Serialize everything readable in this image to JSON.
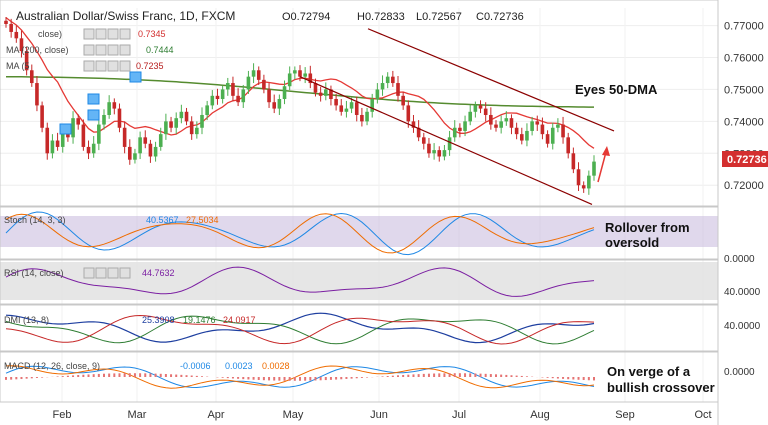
{
  "header": {
    "symbol": "Australian Dollar/Swiss Franc, 1D, FXCM",
    "ohlc": [
      "O0.72794",
      "H0.72833",
      "L0.72567",
      "C0.72736"
    ]
  },
  "indicators_main": [
    {
      "label": "close)",
      "value": "0.7345",
      "color": "#d32f2f"
    },
    {
      "label": "MA (200, close)",
      "value": "0.7444",
      "color": "#2e7d32"
    },
    {
      "label": "MA (5",
      "value": "0.7235",
      "color": "#b71c1c"
    }
  ],
  "price_axis": {
    "ticks": [
      "0.77000",
      "0.76000",
      "0.75000",
      "0.74000",
      "0.73000",
      "0.72000"
    ],
    "current": "0.72736",
    "range": [
      0.7135,
      0.7755
    ]
  },
  "annotations": {
    "main": "Eyes 50-DMA",
    "stoch": [
      "Rollover from",
      "oversold"
    ],
    "macd": [
      "On verge of a",
      "bullish crossover"
    ]
  },
  "panes": {
    "stoch": {
      "label": "Stoch (14, 3, 3)",
      "v1": "40.5367",
      "v2": "27.5034",
      "axis": [
        "0.0000"
      ]
    },
    "rsi": {
      "label": "RSI (14, close)",
      "v1": "44.7632",
      "axis": [
        "40.0000"
      ]
    },
    "dmi": {
      "label": "DMI (13, 8)",
      "v1": "25.3908",
      "v2": "19.1476",
      "v3": "24.0917",
      "axis": [
        "40.0000"
      ]
    },
    "macd": {
      "label": "MACD (12, 26, close, 9)",
      "v1": "-0.0006",
      "v2": "0.0023",
      "v3": "0.0028",
      "axis": [
        "0.0000"
      ]
    }
  },
  "x_axis": {
    "months": [
      "Feb",
      "Mar",
      "Apr",
      "May",
      "Jun",
      "Jul",
      "Aug",
      "Sep",
      "Oct"
    ]
  },
  "colors": {
    "up": "#4caf50",
    "down": "#c62828",
    "ma200": "#558b2f",
    "ma50": "#e53935",
    "channel": "#8b0000",
    "stoch_band": "#c7b8dc",
    "rsi_band": "#e0e0e0",
    "dmi_plus": "#2e7d32",
    "dmi_minus": "#c62828",
    "adx": "#1e3fa0",
    "macd": "#1e88e5",
    "signal": "#ef6c00",
    "hist": "#e57373",
    "price_tag": "#d32f2f"
  },
  "chart_data": {
    "type": "candlestick",
    "title": "Australian Dollar/Swiss Franc, 1D, FXCM",
    "ylim": [
      0.7135,
      0.7755
    ],
    "x": [
      "Feb",
      "Mar",
      "Apr",
      "May",
      "Jun",
      "Jul",
      "Aug",
      "Sep",
      "Oct"
    ],
    "closes": [
      0.7705,
      0.768,
      0.766,
      0.762,
      0.756,
      0.752,
      0.745,
      0.738,
      0.73,
      0.734,
      0.732,
      0.737,
      0.735,
      0.741,
      0.739,
      0.732,
      0.73,
      0.733,
      0.739,
      0.742,
      0.746,
      0.744,
      0.738,
      0.732,
      0.728,
      0.73,
      0.735,
      0.733,
      0.729,
      0.732,
      0.736,
      0.74,
      0.738,
      0.741,
      0.743,
      0.74,
      0.736,
      0.738,
      0.742,
      0.745,
      0.748,
      0.747,
      0.75,
      0.752,
      0.748,
      0.746,
      0.75,
      0.754,
      0.756,
      0.753,
      0.75,
      0.746,
      0.744,
      0.747,
      0.751,
      0.755,
      0.756,
      0.754,
      0.755,
      0.752,
      0.749,
      0.748,
      0.75,
      0.747,
      0.745,
      0.743,
      0.744,
      0.746,
      0.742,
      0.74,
      0.743,
      0.747,
      0.75,
      0.752,
      0.754,
      0.752,
      0.748,
      0.745,
      0.74,
      0.738,
      0.735,
      0.733,
      0.73,
      0.731,
      0.729,
      0.731,
      0.735,
      0.738,
      0.737,
      0.74,
      0.743,
      0.745,
      0.744,
      0.742,
      0.739,
      0.738,
      0.74,
      0.741,
      0.738,
      0.736,
      0.734,
      0.737,
      0.74,
      0.739,
      0.736,
      0.733,
      0.738,
      0.739,
      0.735,
      0.73,
      0.725,
      0.72,
      0.719,
      0.723,
      0.7274
    ],
    "series": [
      {
        "name": "MA (200, close)",
        "start": 0.754,
        "end": 0.7444
      },
      {
        "name": "close)",
        "start": 0.764,
        "end": 0.7345
      }
    ]
  }
}
